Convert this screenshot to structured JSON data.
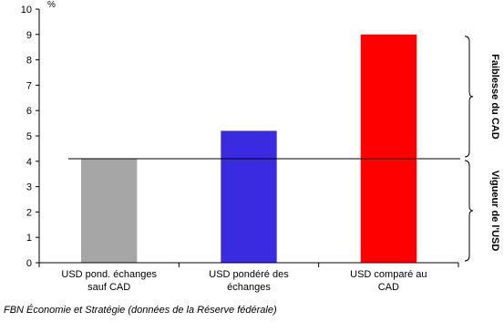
{
  "chart_data": {
    "type": "bar",
    "unit_label": "%",
    "categories": [
      [
        "USD pond. échanges",
        "sauf CAD"
      ],
      [
        "USD pondéré des",
        "échanges"
      ],
      [
        "USD comparé au",
        "CAD"
      ]
    ],
    "values": [
      4.1,
      5.2,
      9.0
    ],
    "colors": [
      "#a6a6a6",
      "#3a2ae0",
      "#ff0000"
    ],
    "ylim": [
      0,
      10
    ],
    "yticks": [
      0,
      1,
      2,
      3,
      4,
      5,
      6,
      7,
      8,
      9,
      10
    ],
    "reference_line": 4.1,
    "annotations": [
      {
        "text": "Faiblesse du CAD",
        "from": 4.1,
        "to": 9.0
      },
      {
        "text": "Vigueur de l'USD",
        "from": 0,
        "to": 4.1
      }
    ],
    "grid": false,
    "legend": "none"
  },
  "source": "FBN Économie et Stratégie (données de la Réserve fédérale)"
}
